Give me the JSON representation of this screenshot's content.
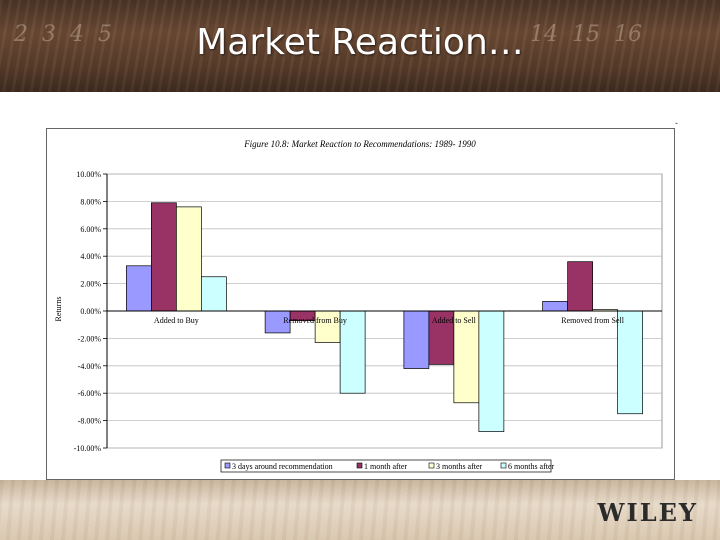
{
  "slide": {
    "title": "Market Reaction…",
    "logo": "WILEY",
    "corner_mark": "-"
  },
  "colors": {
    "series": [
      "#9999ff",
      "#993366",
      "#ffffcc",
      "#ccffff"
    ],
    "plot_background": "#ffffff",
    "gridline": "#c0c0c0"
  },
  "chart_data": {
    "type": "bar",
    "title": "Figure 10.8: Market Reaction to Recommendations: 1989- 1990",
    "xlabel": "",
    "ylabel": "Returns",
    "ylim": [
      -0.1,
      0.1
    ],
    "ytick_step": 0.02,
    "yticks": [
      "10.00%",
      "8.00%",
      "6.00%",
      "4.00%",
      "2.00%",
      "0.00%",
      "-2.00%",
      "-4.00%",
      "-6.00%",
      "-8.00%",
      "-10.00%"
    ],
    "grid": true,
    "legend_position": "bottom",
    "categories": [
      "Added to Buy",
      "Removed from Buy",
      "Added to Sell",
      "Removed from Sell"
    ],
    "series": [
      {
        "name": "3 days around recommendation",
        "values": [
          0.033,
          -0.016,
          -0.042,
          0.007
        ]
      },
      {
        "name": "1 month after",
        "values": [
          0.079,
          -0.007,
          -0.039,
          0.036
        ]
      },
      {
        "name": "3 months after",
        "values": [
          0.076,
          -0.023,
          -0.067,
          0.001
        ]
      },
      {
        "name": "6 months after",
        "values": [
          0.025,
          -0.06,
          -0.088,
          -0.075
        ]
      }
    ]
  }
}
